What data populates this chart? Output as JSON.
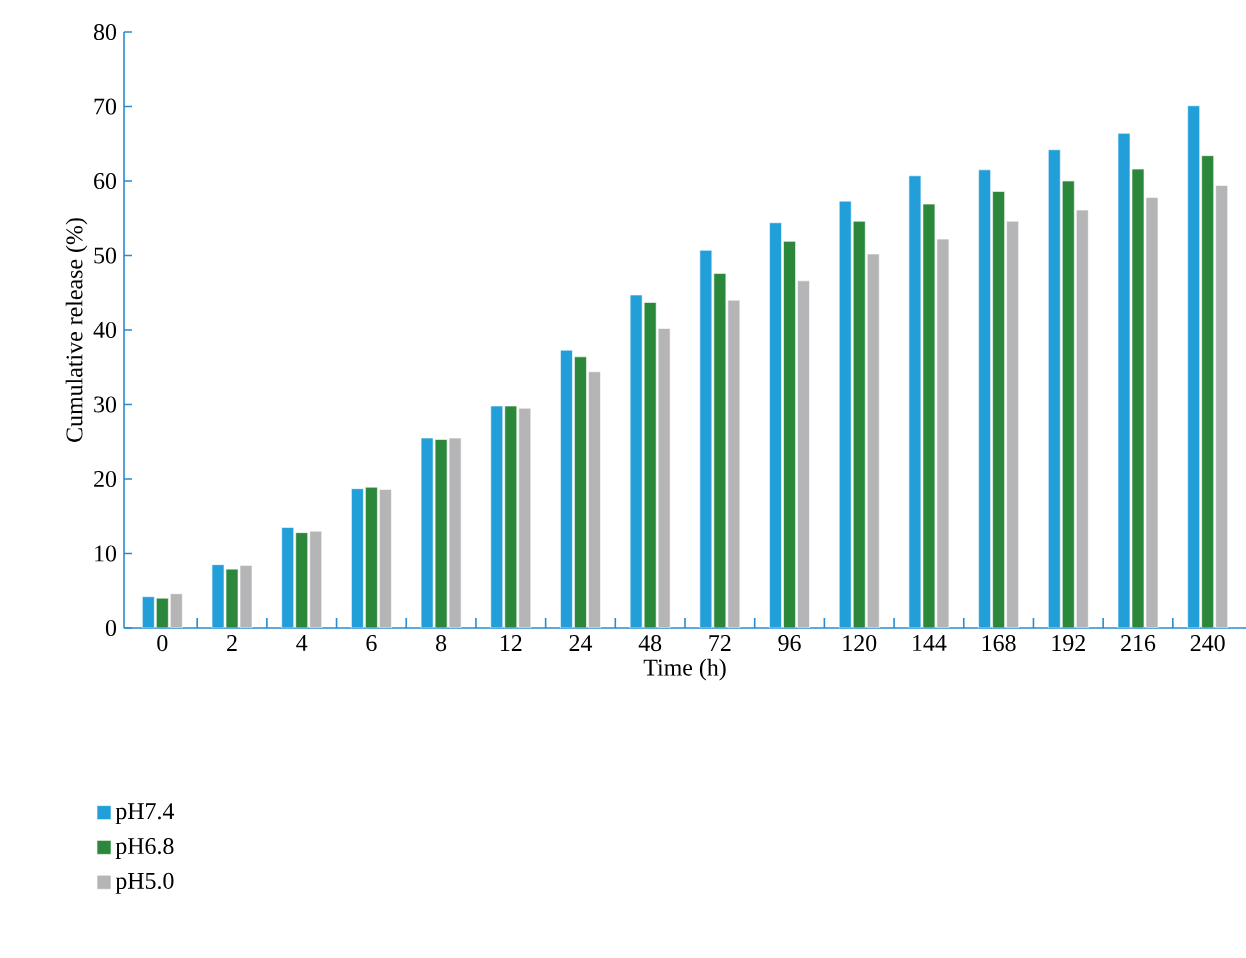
{
  "chart_data": {
    "type": "bar",
    "xlabel": "Time (h)",
    "ylabel": "Cumulative release (%)",
    "categories": [
      "0",
      "2",
      "4",
      "6",
      "8",
      "12",
      "24",
      "48",
      "72",
      "96",
      "120",
      "144",
      "168",
      "192",
      "216",
      "240"
    ],
    "series": [
      {
        "name": "pH7.4",
        "color": "#229fd9",
        "values": [
          4.2,
          8.5,
          13.5,
          18.7,
          25.5,
          29.8,
          37.3,
          44.7,
          50.7,
          54.4,
          57.3,
          60.7,
          61.5,
          64.2,
          66.4,
          70.1
        ]
      },
      {
        "name": "pH6.8",
        "color": "#2b873a",
        "values": [
          4.0,
          7.9,
          12.8,
          18.9,
          25.3,
          29.8,
          36.4,
          43.7,
          47.6,
          51.9,
          54.6,
          56.9,
          58.6,
          60.0,
          61.6,
          63.4
        ]
      },
      {
        "name": "pH5.0",
        "color": "#b5b5b8",
        "values": [
          4.6,
          8.4,
          13.0,
          18.6,
          25.5,
          29.5,
          34.4,
          40.2,
          44.0,
          46.6,
          50.2,
          52.2,
          54.6,
          56.1,
          57.8,
          59.4
        ]
      }
    ],
    "ylim": [
      0,
      80
    ],
    "yticks": [
      0,
      10,
      20,
      30,
      40,
      50,
      60,
      70,
      80
    ],
    "grid": false,
    "legend": "bottom left"
  }
}
